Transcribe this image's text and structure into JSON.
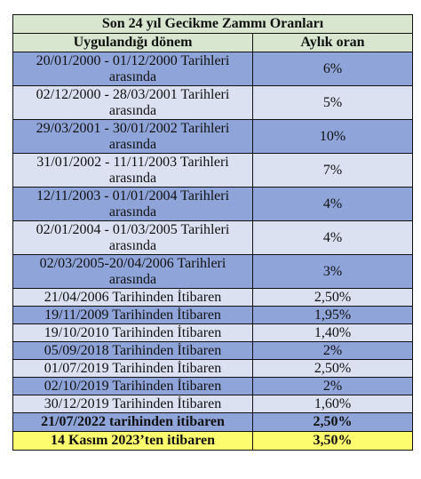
{
  "table": {
    "title": "Son 24 yıl Gecikme Zammı Oranları",
    "headers": {
      "period": "Uygulandığı dönem",
      "rate": "Aylık oran"
    },
    "rows": [
      {
        "period": "20/01/2000 - 01/12/2000 Tarihleri arasında",
        "rate": "6%"
      },
      {
        "period": "02/12/2000 - 28/03/2001 Tarihleri arasında",
        "rate": "5%"
      },
      {
        "period": "29/03/2001 - 30/01/2002 Tarihleri arasında",
        "rate": "10%"
      },
      {
        "period": "31/01/2002 - 11/11/2003 Tarihleri arasında",
        "rate": "7%"
      },
      {
        "period": "12/11/2003 - 01/01/2004 Tarihleri arasında",
        "rate": "4%"
      },
      {
        "period": "02/01/2004 - 01/03/2005 Tarihleri arasında",
        "rate": "4%"
      },
      {
        "period": "02/03/2005-20/04/2006 Tarihleri arasında",
        "rate": "3%"
      },
      {
        "period": "21/04/2006 Tarihinden İtibaren",
        "rate": "2,50%"
      },
      {
        "period": "19/11/2009 Tarihinden İtibaren",
        "rate": "1,95%"
      },
      {
        "period": "19/10/2010 Tarihinden İtibaren",
        "rate": "1,40%"
      },
      {
        "period": "05/09/2018 Tarihinden İtibaren",
        "rate": "2%"
      },
      {
        "period": "01/07/2019 Tarihinden İtibaren",
        "rate": "2,50%"
      },
      {
        "period": "02/10/2019 Tarihinden İtibaren",
        "rate": "2%"
      },
      {
        "period": "30/12/2019 Tarihinden İtibaren",
        "rate": "1,60%"
      },
      {
        "period": "21/07/2022 tarihinden itibaren",
        "rate": "2,50%"
      },
      {
        "period": "14 Kasım 2023’ten itibaren",
        "rate": "3,50%"
      }
    ]
  },
  "colors": {
    "header_green": "#d8e6cf",
    "row_blue": "#8fa4d8",
    "row_light": "#dbe1f1",
    "highlight_yellow": "#fdfb6e",
    "border": "#111111"
  }
}
